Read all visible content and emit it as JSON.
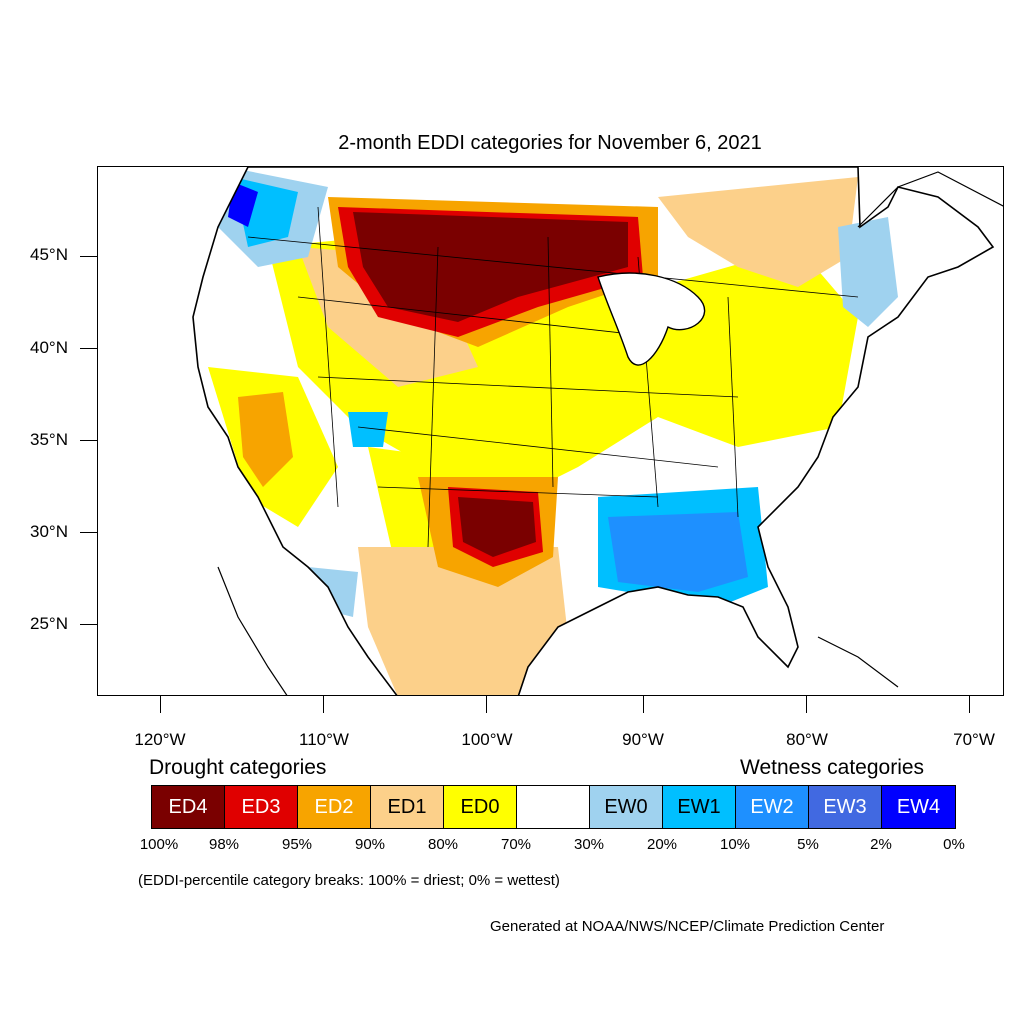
{
  "title": "2-month EDDI categories for November 6, 2021",
  "map": {
    "lat_labels": [
      "45°N",
      "40°N",
      "35°N",
      "30°N",
      "25°N"
    ],
    "lon_labels": [
      "120°W",
      "110°W",
      "100°W",
      "90°W",
      "80°W",
      "70°W"
    ],
    "colors": {
      "ED4": "#7a0000",
      "ED3": "#e00000",
      "ED2": "#f7a400",
      "ED1": "#fcd08a",
      "ED0": "#ffff00",
      "EW0": "#9fd2ef",
      "EW1": "#00bfff",
      "EW2": "#1e90ff",
      "EW3": "#4169e1",
      "EW4": "#0000ff"
    }
  },
  "legend": {
    "drought_title": "Drought categories",
    "wetness_title": "Wetness categories",
    "categories": [
      {
        "label": "ED4",
        "color": "#7a0000",
        "text_color": "#ffffff"
      },
      {
        "label": "ED3",
        "color": "#e00000",
        "text_color": "#ffffff"
      },
      {
        "label": "ED2",
        "color": "#f7a400",
        "text_color": "#ffffff"
      },
      {
        "label": "ED1",
        "color": "#fcd08a",
        "text_color": "#000000"
      },
      {
        "label": "ED0",
        "color": "#ffff00",
        "text_color": "#000000"
      },
      {
        "label": "",
        "color": "#ffffff",
        "text_color": "#000000"
      },
      {
        "label": "EW0",
        "color": "#9fd2ef",
        "text_color": "#000000"
      },
      {
        "label": "EW1",
        "color": "#00bfff",
        "text_color": "#000000"
      },
      {
        "label": "EW2",
        "color": "#1e90ff",
        "text_color": "#ffffff"
      },
      {
        "label": "EW3",
        "color": "#4169e1",
        "text_color": "#ffffff"
      },
      {
        "label": "EW4",
        "color": "#0000ff",
        "text_color": "#ffffff"
      }
    ],
    "percent_breaks": [
      "100%",
      "98%",
      "95%",
      "90%",
      "80%",
      "70%",
      "30%",
      "20%",
      "10%",
      "5%",
      "2%",
      "0%"
    ]
  },
  "note": "(EDDI-percentile category breaks: 100% = driest; 0% = wettest)",
  "credit": "Generated at NOAA/NWS/NCEP/Climate Prediction Center"
}
